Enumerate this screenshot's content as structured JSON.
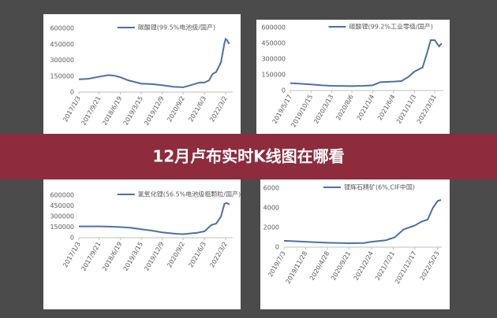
{
  "banner": {
    "title": "12月卢布实时K线图在哪看"
  },
  "chart_data": [
    {
      "type": "line",
      "ylim": [
        0,
        600000
      ],
      "yticks": [
        0,
        150000,
        300000,
        450000,
        600000
      ],
      "grid": false,
      "xlim": [
        "2017/1/3",
        "2022/6/1"
      ],
      "xticks": [
        "2017/1/3",
        "2017/9/21",
        "2018/6/19",
        "2019/3/15",
        "2019/12/9",
        "2020/9/2",
        "2021/6/3",
        "2022/3/2"
      ],
      "x": [
        "2017/1/3",
        "2017/5/1",
        "2017/9/21",
        "2018/1/15",
        "2018/4/1",
        "2018/6/19",
        "2018/10/1",
        "2019/3/15",
        "2019/8/1",
        "2019/12/9",
        "2020/5/1",
        "2020/9/2",
        "2021/1/1",
        "2021/4/1",
        "2021/6/3",
        "2021/8/1",
        "2021/9/15",
        "2021/11/1",
        "2022/1/1",
        "2022/2/15",
        "2022/3/2",
        "2022/3/20",
        "2022/4/10",
        "2022/4/20"
      ],
      "series": [
        {
          "name": "碳酸锂(99.5%电池级/国产)",
          "color": "#4a70a8",
          "values": [
            120000,
            125000,
            145000,
            160000,
            155000,
            140000,
            110000,
            80000,
            75000,
            65000,
            50000,
            45000,
            70000,
            90000,
            90000,
            110000,
            170000,
            190000,
            280000,
            460000,
            500000,
            490000,
            460000,
            465000
          ]
        }
      ]
    },
    {
      "type": "line",
      "ylim": [
        0,
        600000
      ],
      "yticks": [
        0,
        150000,
        300000,
        450000,
        600000
      ],
      "grid": false,
      "xlim": [
        "2019/5/17",
        "2022/6/1"
      ],
      "xticks": [
        "2019/5/17",
        "2019/10/15",
        "2020/3/13",
        "2020/8/6",
        "2021/1/4",
        "2021/6/4",
        "2021/11/3",
        "2022/3/31"
      ],
      "x": [
        "2019/5/17",
        "2019/8/1",
        "2019/10/15",
        "2020/1/1",
        "2020/3/13",
        "2020/8/6",
        "2020/11/1",
        "2021/1/4",
        "2021/3/1",
        "2021/6/4",
        "2021/8/1",
        "2021/9/20",
        "2021/11/3",
        "2022/1/1",
        "2022/2/1",
        "2022/3/1",
        "2022/3/31",
        "2022/5/1",
        "2022/5/20"
      ],
      "series": [
        {
          "name": "碳酸锂(99.2%工业零级/国产)",
          "color": "#4a70a8",
          "values": [
            70000,
            65000,
            58000,
            50000,
            45000,
            42000,
            45000,
            50000,
            80000,
            85000,
            90000,
            130000,
            180000,
            220000,
            350000,
            480000,
            480000,
            420000,
            450000
          ]
        }
      ]
    },
    {
      "type": "line",
      "ylim": [
        0,
        600000
      ],
      "yticks": [
        0,
        150000,
        300000,
        450000,
        600000
      ],
      "grid": false,
      "xlim": [
        "2017/1/3",
        "2022/6/1"
      ],
      "xticks": [
        "2017/1/3",
        "2017/9/21",
        "2018/6/19",
        "2019/3/15",
        "2019/12/9",
        "2020/9/2",
        "2021/6/3",
        "2022/3/2"
      ],
      "x": [
        "2017/1/3",
        "2017/9/21",
        "2018/3/1",
        "2018/6/19",
        "2018/11/1",
        "2019/3/15",
        "2019/8/1",
        "2019/12/9",
        "2020/6/1",
        "2020/9/2",
        "2021/3/1",
        "2021/6/3",
        "2021/9/1",
        "2021/11/1",
        "2022/1/1",
        "2022/2/15",
        "2022/3/15",
        "2022/4/20"
      ],
      "series": [
        {
          "name": "氢氧化锂(56.5%电池级粗颗粒/国产)",
          "color": "#4a70a8",
          "values": [
            160000,
            160000,
            155000,
            150000,
            140000,
            120000,
            100000,
            75000,
            55000,
            50000,
            70000,
            90000,
            180000,
            200000,
            300000,
            480000,
            490000,
            470000
          ]
        }
      ]
    },
    {
      "type": "line",
      "ylim": [
        0,
        6000
      ],
      "yticks": [
        0,
        2000,
        4000,
        6000
      ],
      "grid": false,
      "xlim": [
        "2019/7/3",
        "2022/6/20"
      ],
      "xticks": [
        "2019/7/3",
        "2019/11/28",
        "2020/4/28",
        "2020/9/21",
        "2021/2/24",
        "2021/7/21",
        "2021/12/17",
        "2022/5/23"
      ],
      "x": [
        "2019/7/3",
        "2019/11/28",
        "2020/2/1",
        "2020/4/28",
        "2020/9/21",
        "2021/1/1",
        "2021/2/24",
        "2021/6/1",
        "2021/8/1",
        "2021/10/1",
        "2021/12/17",
        "2022/2/1",
        "2022/3/15",
        "2022/4/20",
        "2022/5/23",
        "2022/6/15"
      ],
      "series": [
        {
          "name": "锂辉石精矿(6%,CIF中国)",
          "color": "#4a70a8",
          "values": [
            650,
            550,
            500,
            450,
            400,
            420,
            550,
            700,
            1000,
            1800,
            2200,
            2600,
            2800,
            4000,
            4700,
            4800
          ]
        }
      ]
    }
  ]
}
